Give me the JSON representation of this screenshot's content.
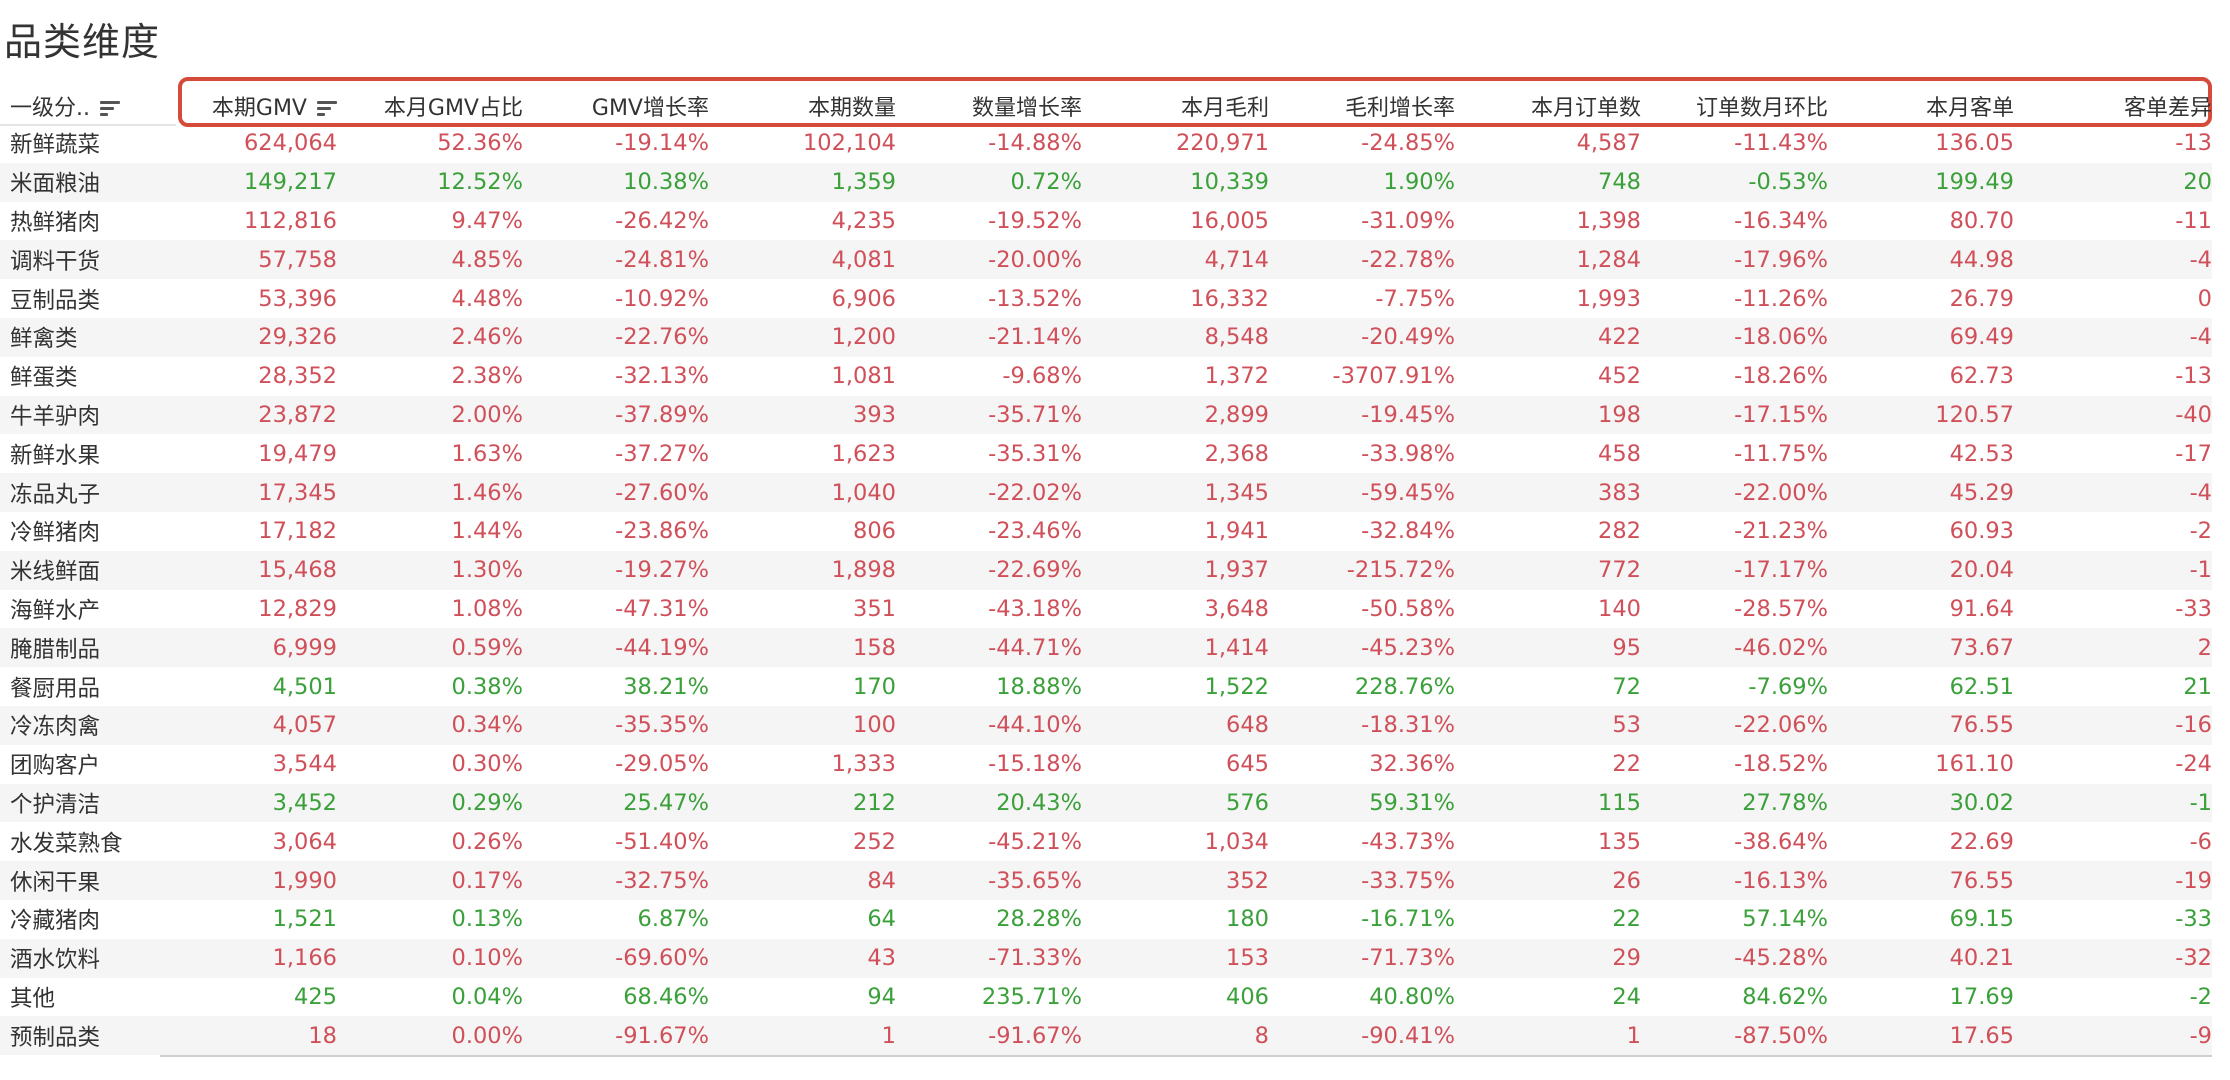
{
  "title": "品类维度",
  "columns": [
    "一级分..",
    "本期GMV",
    "本月GMV占比",
    "GMV增长率",
    "本期数量",
    "数量增长率",
    "本月毛利",
    "毛利增长率",
    "本月订单数",
    "订单数月环比",
    "本月客单",
    "客单差异"
  ],
  "sorted_columns": [
    "一级分..",
    "本期GMV"
  ],
  "colors": {
    "negative": "#d0505a",
    "positive": "#3aa03a",
    "highlight": "#d64a3a"
  },
  "rows": [
    {
      "category": "新鲜蔬菜",
      "gmv": "624,064",
      "share": "52.36%",
      "gmv_growth": "-19.14%",
      "qty": "102,104",
      "qty_growth": "-14.88%",
      "profit": "220,971",
      "profit_growth": "-24.85%",
      "orders": "4,587",
      "orders_mom": "-11.43%",
      "aov": "136.05",
      "aov_diff": "-13",
      "trend": "neg"
    },
    {
      "category": "米面粮油",
      "gmv": "149,217",
      "share": "12.52%",
      "gmv_growth": "10.38%",
      "qty": "1,359",
      "qty_growth": "0.72%",
      "profit": "10,339",
      "profit_growth": "1.90%",
      "orders": "748",
      "orders_mom": "-0.53%",
      "aov": "199.49",
      "aov_diff": "20",
      "trend": "pos"
    },
    {
      "category": "热鲜猪肉",
      "gmv": "112,816",
      "share": "9.47%",
      "gmv_growth": "-26.42%",
      "qty": "4,235",
      "qty_growth": "-19.52%",
      "profit": "16,005",
      "profit_growth": "-31.09%",
      "orders": "1,398",
      "orders_mom": "-16.34%",
      "aov": "80.70",
      "aov_diff": "-11",
      "trend": "neg"
    },
    {
      "category": "调料干货",
      "gmv": "57,758",
      "share": "4.85%",
      "gmv_growth": "-24.81%",
      "qty": "4,081",
      "qty_growth": "-20.00%",
      "profit": "4,714",
      "profit_growth": "-22.78%",
      "orders": "1,284",
      "orders_mom": "-17.96%",
      "aov": "44.98",
      "aov_diff": "-4",
      "trend": "neg"
    },
    {
      "category": "豆制品类",
      "gmv": "53,396",
      "share": "4.48%",
      "gmv_growth": "-10.92%",
      "qty": "6,906",
      "qty_growth": "-13.52%",
      "profit": "16,332",
      "profit_growth": "-7.75%",
      "orders": "1,993",
      "orders_mom": "-11.26%",
      "aov": "26.79",
      "aov_diff": "0",
      "trend": "neg"
    },
    {
      "category": "鲜禽类",
      "gmv": "29,326",
      "share": "2.46%",
      "gmv_growth": "-22.76%",
      "qty": "1,200",
      "qty_growth": "-21.14%",
      "profit": "8,548",
      "profit_growth": "-20.49%",
      "orders": "422",
      "orders_mom": "-18.06%",
      "aov": "69.49",
      "aov_diff": "-4",
      "trend": "neg"
    },
    {
      "category": "鲜蛋类",
      "gmv": "28,352",
      "share": "2.38%",
      "gmv_growth": "-32.13%",
      "qty": "1,081",
      "qty_growth": "-9.68%",
      "profit": "1,372",
      "profit_growth": "-3707.91%",
      "orders": "452",
      "orders_mom": "-18.26%",
      "aov": "62.73",
      "aov_diff": "-13",
      "trend": "neg"
    },
    {
      "category": "牛羊驴肉",
      "gmv": "23,872",
      "share": "2.00%",
      "gmv_growth": "-37.89%",
      "qty": "393",
      "qty_growth": "-35.71%",
      "profit": "2,899",
      "profit_growth": "-19.45%",
      "orders": "198",
      "orders_mom": "-17.15%",
      "aov": "120.57",
      "aov_diff": "-40",
      "trend": "neg"
    },
    {
      "category": "新鲜水果",
      "gmv": "19,479",
      "share": "1.63%",
      "gmv_growth": "-37.27%",
      "qty": "1,623",
      "qty_growth": "-35.31%",
      "profit": "2,368",
      "profit_growth": "-33.98%",
      "orders": "458",
      "orders_mom": "-11.75%",
      "aov": "42.53",
      "aov_diff": "-17",
      "trend": "neg"
    },
    {
      "category": "冻品丸子",
      "gmv": "17,345",
      "share": "1.46%",
      "gmv_growth": "-27.60%",
      "qty": "1,040",
      "qty_growth": "-22.02%",
      "profit": "1,345",
      "profit_growth": "-59.45%",
      "orders": "383",
      "orders_mom": "-22.00%",
      "aov": "45.29",
      "aov_diff": "-4",
      "trend": "neg"
    },
    {
      "category": "冷鲜猪肉",
      "gmv": "17,182",
      "share": "1.44%",
      "gmv_growth": "-23.86%",
      "qty": "806",
      "qty_growth": "-23.46%",
      "profit": "1,941",
      "profit_growth": "-32.84%",
      "orders": "282",
      "orders_mom": "-21.23%",
      "aov": "60.93",
      "aov_diff": "-2",
      "trend": "neg"
    },
    {
      "category": "米线鲜面",
      "gmv": "15,468",
      "share": "1.30%",
      "gmv_growth": "-19.27%",
      "qty": "1,898",
      "qty_growth": "-22.69%",
      "profit": "1,937",
      "profit_growth": "-215.72%",
      "orders": "772",
      "orders_mom": "-17.17%",
      "aov": "20.04",
      "aov_diff": "-1",
      "trend": "neg"
    },
    {
      "category": "海鲜水产",
      "gmv": "12,829",
      "share": "1.08%",
      "gmv_growth": "-47.31%",
      "qty": "351",
      "qty_growth": "-43.18%",
      "profit": "3,648",
      "profit_growth": "-50.58%",
      "orders": "140",
      "orders_mom": "-28.57%",
      "aov": "91.64",
      "aov_diff": "-33",
      "trend": "neg"
    },
    {
      "category": "腌腊制品",
      "gmv": "6,999",
      "share": "0.59%",
      "gmv_growth": "-44.19%",
      "qty": "158",
      "qty_growth": "-44.71%",
      "profit": "1,414",
      "profit_growth": "-45.23%",
      "orders": "95",
      "orders_mom": "-46.02%",
      "aov": "73.67",
      "aov_diff": "2",
      "trend": "neg"
    },
    {
      "category": "餐厨用品",
      "gmv": "4,501",
      "share": "0.38%",
      "gmv_growth": "38.21%",
      "qty": "170",
      "qty_growth": "18.88%",
      "profit": "1,522",
      "profit_growth": "228.76%",
      "orders": "72",
      "orders_mom": "-7.69%",
      "aov": "62.51",
      "aov_diff": "21",
      "trend": "pos"
    },
    {
      "category": "冷冻肉禽",
      "gmv": "4,057",
      "share": "0.34%",
      "gmv_growth": "-35.35%",
      "qty": "100",
      "qty_growth": "-44.10%",
      "profit": "648",
      "profit_growth": "-18.31%",
      "orders": "53",
      "orders_mom": "-22.06%",
      "aov": "76.55",
      "aov_diff": "-16",
      "trend": "neg"
    },
    {
      "category": "团购客户",
      "gmv": "3,544",
      "share": "0.30%",
      "gmv_growth": "-29.05%",
      "qty": "1,333",
      "qty_growth": "-15.18%",
      "profit": "645",
      "profit_growth": "32.36%",
      "orders": "22",
      "orders_mom": "-18.52%",
      "aov": "161.10",
      "aov_diff": "-24",
      "trend": "neg"
    },
    {
      "category": "个护清洁",
      "gmv": "3,452",
      "share": "0.29%",
      "gmv_growth": "25.47%",
      "qty": "212",
      "qty_growth": "20.43%",
      "profit": "576",
      "profit_growth": "59.31%",
      "orders": "115",
      "orders_mom": "27.78%",
      "aov": "30.02",
      "aov_diff": "-1",
      "trend": "pos"
    },
    {
      "category": "水发菜熟食",
      "gmv": "3,064",
      "share": "0.26%",
      "gmv_growth": "-51.40%",
      "qty": "252",
      "qty_growth": "-45.21%",
      "profit": "1,034",
      "profit_growth": "-43.73%",
      "orders": "135",
      "orders_mom": "-38.64%",
      "aov": "22.69",
      "aov_diff": "-6",
      "trend": "neg"
    },
    {
      "category": "休闲干果",
      "gmv": "1,990",
      "share": "0.17%",
      "gmv_growth": "-32.75%",
      "qty": "84",
      "qty_growth": "-35.65%",
      "profit": "352",
      "profit_growth": "-33.75%",
      "orders": "26",
      "orders_mom": "-16.13%",
      "aov": "76.55",
      "aov_diff": "-19",
      "trend": "neg"
    },
    {
      "category": "冷藏猪肉",
      "gmv": "1,521",
      "share": "0.13%",
      "gmv_growth": "6.87%",
      "qty": "64",
      "qty_growth": "28.28%",
      "profit": "180",
      "profit_growth": "-16.71%",
      "orders": "22",
      "orders_mom": "57.14%",
      "aov": "69.15",
      "aov_diff": "-33",
      "trend": "pos"
    },
    {
      "category": "酒水饮料",
      "gmv": "1,166",
      "share": "0.10%",
      "gmv_growth": "-69.60%",
      "qty": "43",
      "qty_growth": "-71.33%",
      "profit": "153",
      "profit_growth": "-71.73%",
      "orders": "29",
      "orders_mom": "-45.28%",
      "aov": "40.21",
      "aov_diff": "-32",
      "trend": "neg"
    },
    {
      "category": "其他",
      "gmv": "425",
      "share": "0.04%",
      "gmv_growth": "68.46%",
      "qty": "94",
      "qty_growth": "235.71%",
      "profit": "406",
      "profit_growth": "40.80%",
      "orders": "24",
      "orders_mom": "84.62%",
      "aov": "17.69",
      "aov_diff": "-2",
      "trend": "pos"
    },
    {
      "category": "预制品类",
      "gmv": "18",
      "share": "0.00%",
      "gmv_growth": "-91.67%",
      "qty": "1",
      "qty_growth": "-91.67%",
      "profit": "8",
      "profit_growth": "-90.41%",
      "orders": "1",
      "orders_mom": "-87.50%",
      "aov": "17.65",
      "aov_diff": "-9",
      "trend": "neg"
    }
  ]
}
